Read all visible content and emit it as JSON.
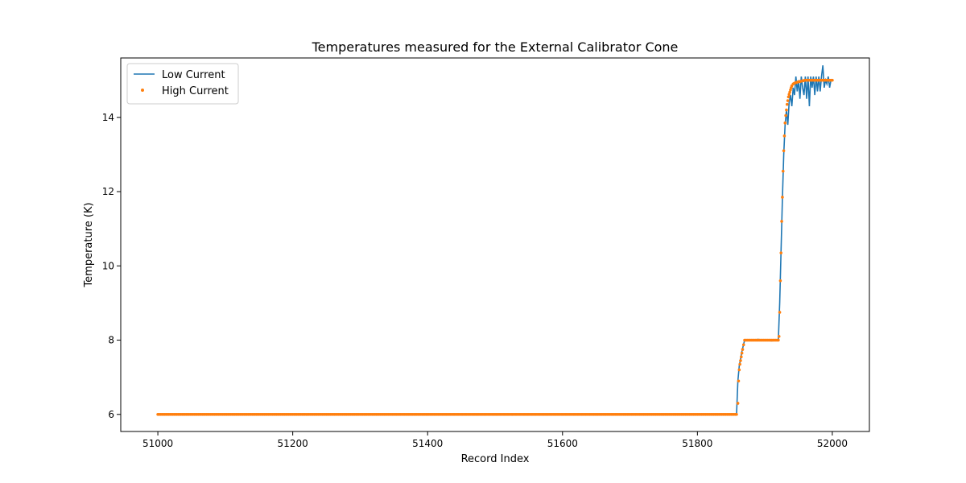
{
  "chart_data": {
    "type": "line",
    "title": "Temperatures measured for the External Calibrator Cone",
    "xlabel": "Record Index",
    "ylabel": "Temperature (K)",
    "xlim": [
      50945,
      52055
    ],
    "ylim": [
      5.54,
      15.6
    ],
    "xticks": [
      51000,
      51200,
      51400,
      51600,
      51800,
      52000
    ],
    "yticks": [
      6,
      8,
      10,
      12,
      14
    ],
    "grid": false,
    "legend_position": "top-left",
    "series": [
      {
        "name": "Low Current",
        "style": "line",
        "color": "#1f77b4",
        "points": [
          [
            51000,
            6.0
          ],
          [
            51050,
            5.99
          ],
          [
            51100,
            6.0
          ],
          [
            51200,
            6.0
          ],
          [
            51300,
            6.0
          ],
          [
            51400,
            6.0
          ],
          [
            51500,
            6.0
          ],
          [
            51600,
            6.0
          ],
          [
            51700,
            6.0
          ],
          [
            51800,
            6.0
          ],
          [
            51858,
            6.0
          ],
          [
            51860,
            6.9
          ],
          [
            51862,
            7.3
          ],
          [
            51864,
            7.5
          ],
          [
            51866,
            7.7
          ],
          [
            51868,
            7.85
          ],
          [
            51870,
            8.0
          ],
          [
            51880,
            8.0
          ],
          [
            51890,
            8.02
          ],
          [
            51900,
            8.0
          ],
          [
            51910,
            7.98
          ],
          [
            51920,
            8.0
          ],
          [
            51922,
            9.0
          ],
          [
            51924,
            10.4
          ],
          [
            51926,
            11.8
          ],
          [
            51928,
            13.0
          ],
          [
            51930,
            13.8
          ],
          [
            51932,
            14.2
          ],
          [
            51934,
            13.8
          ],
          [
            51936,
            14.4
          ],
          [
            51938,
            14.6
          ],
          [
            51940,
            14.3
          ],
          [
            51942,
            14.8
          ],
          [
            51944,
            14.6
          ],
          [
            51946,
            15.1
          ],
          [
            51948,
            14.7
          ],
          [
            51950,
            15.0
          ],
          [
            51952,
            14.5
          ],
          [
            51954,
            15.1
          ],
          [
            51956,
            14.8
          ],
          [
            51958,
            14.6
          ],
          [
            51960,
            15.1
          ],
          [
            51962,
            14.5
          ],
          [
            51964,
            15.1
          ],
          [
            51966,
            14.3
          ],
          [
            51968,
            15.1
          ],
          [
            51970,
            14.8
          ],
          [
            51972,
            15.1
          ],
          [
            51974,
            14.6
          ],
          [
            51976,
            15.1
          ],
          [
            51978,
            14.7
          ],
          [
            51980,
            15.1
          ],
          [
            51982,
            14.7
          ],
          [
            51984,
            15.1
          ],
          [
            51986,
            15.4
          ],
          [
            51988,
            14.8
          ],
          [
            51990,
            15.0
          ],
          [
            51992,
            14.9
          ],
          [
            51994,
            15.1
          ],
          [
            51996,
            14.8
          ],
          [
            51998,
            15.0
          ],
          [
            52000,
            15.0
          ]
        ]
      },
      {
        "name": "High Current",
        "style": "scatter",
        "color": "#ff7f0e",
        "points": [
          [
            51000,
            6.0
          ],
          [
            51858,
            6.0
          ],
          [
            51860,
            6.3
          ],
          [
            51861,
            6.9
          ],
          [
            51862,
            7.2
          ],
          [
            51863,
            7.35
          ],
          [
            51864,
            7.45
          ],
          [
            51865,
            7.55
          ],
          [
            51866,
            7.65
          ],
          [
            51867,
            7.75
          ],
          [
            51870,
            8.0
          ],
          [
            51880,
            8.0
          ],
          [
            51890,
            8.0
          ],
          [
            51900,
            8.0
          ],
          [
            51910,
            8.0
          ],
          [
            51920,
            8.0
          ],
          [
            51921,
            8.1
          ],
          [
            51922,
            8.75
          ],
          [
            51923,
            9.6
          ],
          [
            51924,
            10.35
          ],
          [
            51925,
            11.2
          ],
          [
            51926,
            11.85
          ],
          [
            51927,
            12.55
          ],
          [
            51928,
            13.1
          ],
          [
            51929,
            13.5
          ],
          [
            51930,
            13.85
          ],
          [
            51931,
            14.05
          ],
          [
            51932,
            14.2
          ],
          [
            51933,
            14.35
          ],
          [
            51934,
            14.45
          ],
          [
            51935,
            14.55
          ],
          [
            51936,
            14.62
          ],
          [
            51937,
            14.68
          ],
          [
            51938,
            14.74
          ],
          [
            51939,
            14.8
          ],
          [
            51940,
            14.85
          ],
          [
            51942,
            14.9
          ],
          [
            51945,
            14.93
          ],
          [
            51950,
            14.96
          ],
          [
            51955,
            14.98
          ],
          [
            51960,
            15.0
          ],
          [
            51970,
            15.0
          ],
          [
            51980,
            15.0
          ],
          [
            51990,
            15.0
          ],
          [
            52000,
            15.0
          ]
        ]
      }
    ]
  }
}
